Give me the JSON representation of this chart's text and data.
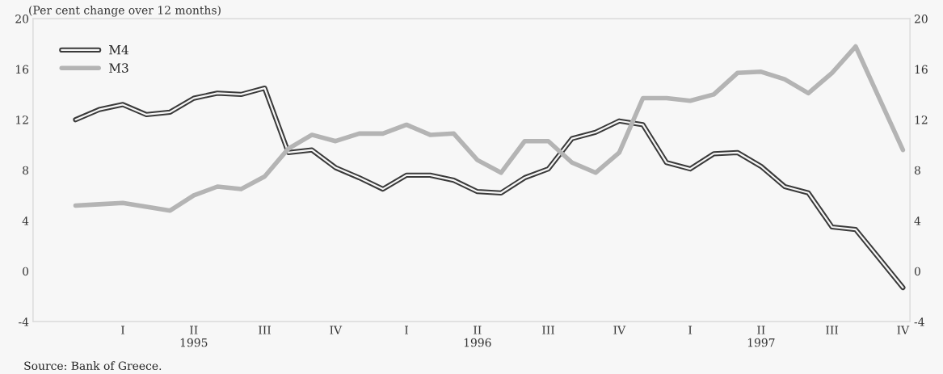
{
  "chart_data": {
    "type": "line",
    "subtitle": "(Per cent change over 12 months)",
    "categories": [
      null,
      null,
      "I",
      null,
      null,
      "II\n1995",
      null,
      null,
      "III",
      null,
      null,
      "IV",
      null,
      null,
      "I",
      null,
      null,
      "II\n1996",
      null,
      null,
      "III",
      null,
      null,
      "IV",
      null,
      null,
      "I",
      null,
      null,
      "II\n1997",
      null,
      null,
      "III",
      null,
      null,
      "IV"
    ],
    "series": [
      {
        "name": "M4",
        "color": "#3a3a3a",
        "values": [
          12.0,
          12.8,
          13.2,
          12.4,
          12.6,
          13.7,
          14.1,
          14.0,
          14.5,
          9.4,
          9.6,
          8.2,
          7.4,
          6.5,
          7.6,
          7.6,
          7.2,
          6.3,
          6.2,
          7.4,
          8.1,
          10.5,
          11.0,
          11.9,
          11.6,
          8.6,
          8.1,
          9.3,
          9.4,
          8.3,
          6.7,
          6.2,
          3.5,
          3.3,
          1.0,
          -1.3
        ]
      },
      {
        "name": "M3",
        "color": "#b4b4b4",
        "values": [
          5.2,
          5.3,
          5.4,
          5.1,
          4.8,
          6.0,
          6.7,
          6.5,
          7.5,
          9.7,
          10.8,
          10.3,
          10.9,
          10.9,
          11.6,
          10.8,
          10.9,
          8.8,
          7.8,
          10.3,
          10.3,
          8.6,
          7.8,
          9.4,
          13.7,
          13.7,
          13.5,
          14.0,
          15.7,
          15.8,
          15.2,
          14.1,
          15.7,
          17.8,
          13.7,
          9.6
        ]
      }
    ],
    "ylim": [
      -4,
      20
    ],
    "yticks": [
      -4,
      0,
      4,
      8,
      12,
      16,
      20
    ],
    "y2lim": [
      -4,
      20
    ],
    "y2ticks": [
      -4,
      0,
      4,
      8,
      12,
      16,
      20
    ],
    "legend": "top left",
    "annotations": [
      "Source: Bank of Greece."
    ]
  }
}
